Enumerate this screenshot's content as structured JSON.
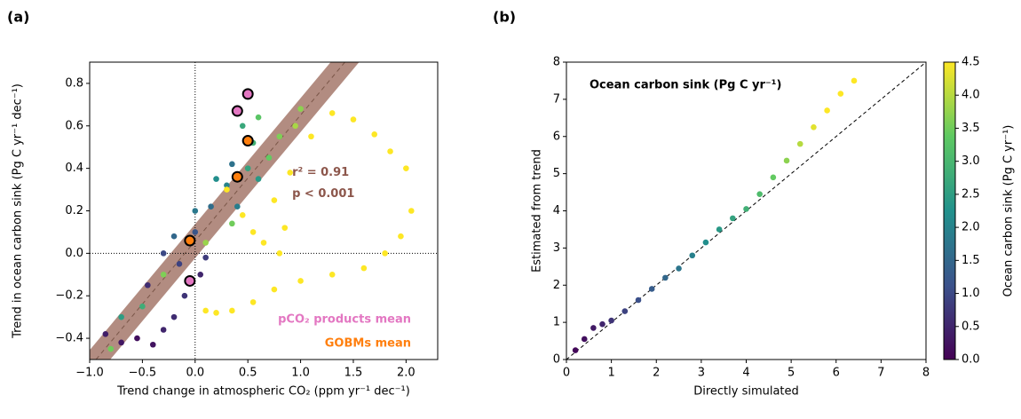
{
  "chart_data": [
    {
      "type": "scatter",
      "panel_label": "(a)",
      "xlabel": "Trend change in atmospheric CO₂ (ppm yr⁻¹ dec⁻¹)",
      "ylabel": "Trend in ocean carbon sink (Pg C yr⁻¹ dec⁻¹)",
      "xlim": [
        -1.0,
        2.3
      ],
      "ylim": [
        -0.5,
        0.9
      ],
      "xticks": [
        {
          "value": -1.0,
          "label": "−1.0"
        },
        {
          "value": -0.5,
          "label": "−0.5"
        },
        {
          "value": 0,
          "label": "0.0"
        },
        0.5,
        {
          "value": 1.0,
          "label": "1.0"
        },
        1.5,
        {
          "value": 2.0,
          "label": "2.0"
        }
      ],
      "yticks": [
        {
          "value": -0.4,
          "label": "−0.4"
        },
        {
          "value": -0.2,
          "label": "−0.2"
        },
        {
          "value": 0,
          "label": "0.0"
        },
        0.2,
        0.4,
        0.6,
        0.8
      ],
      "zero_lines": {
        "x": 0,
        "y": 0
      },
      "fit_line": {
        "x": [
          -0.94,
          1.42
        ],
        "y": [
          -0.5,
          0.9
        ],
        "band": 0.08,
        "color": "#a5786b"
      },
      "annotations": [
        {
          "text": "r² = 0.91",
          "x": 0.92,
          "y": 0.38
        },
        {
          "text": "p < 0.001",
          "x": 0.92,
          "y": 0.28
        }
      ],
      "x": [
        -0.85,
        -0.7,
        -0.55,
        -0.4,
        -0.3,
        -0.2,
        -0.1,
        0.05,
        0.1,
        -0.15,
        -0.3,
        0.0,
        -0.45,
        -0.2,
        0.0,
        0.15,
        0.3,
        0.35,
        0.2,
        0.4,
        -0.7,
        -0.5,
        0.5,
        0.55,
        0.6,
        0.45,
        -0.8,
        -0.3,
        0.1,
        0.7,
        0.8,
        0.95,
        1.0,
        0.6,
        0.35,
        0.3,
        0.45,
        0.55,
        0.65,
        0.8,
        0.85,
        0.75,
        0.9,
        1.1,
        1.3,
        1.5,
        1.7,
        1.85,
        2.0,
        2.05,
        1.95,
        1.8,
        1.6,
        1.3,
        1.0,
        0.75,
        0.55,
        0.35,
        0.2,
        0.1
      ],
      "y": [
        -0.38,
        -0.42,
        -0.4,
        -0.43,
        -0.36,
        -0.3,
        -0.2,
        -0.1,
        -0.02,
        -0.05,
        0.0,
        0.1,
        -0.15,
        0.08,
        0.2,
        0.22,
        0.32,
        0.42,
        0.35,
        0.22,
        -0.3,
        -0.25,
        0.4,
        0.52,
        0.35,
        0.6,
        -0.45,
        -0.1,
        0.05,
        0.45,
        0.55,
        0.6,
        0.68,
        0.64,
        0.14,
        0.3,
        0.18,
        0.1,
        0.05,
        0.0,
        0.12,
        0.25,
        0.38,
        0.55,
        0.66,
        0.63,
        0.56,
        0.48,
        0.4,
        0.2,
        0.08,
        0.0,
        -0.07,
        -0.1,
        -0.13,
        -0.17,
        -0.23,
        -0.27,
        -0.28,
        -0.27
      ],
      "c": [
        0.4,
        0.3,
        0.2,
        0.25,
        0.5,
        0.6,
        0.7,
        0.5,
        0.8,
        0.9,
        1.0,
        1.2,
        0.6,
        1.5,
        1.8,
        1.6,
        2.0,
        1.7,
        2.2,
        1.9,
        2.5,
        2.8,
        2.6,
        2.9,
        2.4,
        2.7,
        3.5,
        3.6,
        3.8,
        3.4,
        3.6,
        3.9,
        3.7,
        3.3,
        3.5,
        4.5,
        4.5,
        4.5,
        4.5,
        4.5,
        4.5,
        4.5,
        4.5,
        4.5,
        4.5,
        4.5,
        4.5,
        4.5,
        4.5,
        4.5,
        4.5,
        4.5,
        4.5,
        4.5,
        4.5,
        4.5,
        4.5,
        4.5,
        4.5,
        4.5
      ],
      "markers": [
        {
          "name": "pCO₂ products mean",
          "color": "#e377c2",
          "x": [
            -0.05,
            0.4,
            0.5
          ],
          "y": [
            -0.13,
            0.67,
            0.75
          ]
        },
        {
          "name": "GOBMs mean",
          "color": "#ff7f0e",
          "x": [
            -0.05,
            0.4,
            0.5
          ],
          "y": [
            0.06,
            0.36,
            0.53
          ]
        }
      ]
    },
    {
      "type": "scatter",
      "panel_label": "(b)",
      "title": "Ocean carbon sink (Pg C yr⁻¹)",
      "xlabel": "Directly simulated",
      "ylabel": "Estimated from trend",
      "xlim": [
        0,
        8
      ],
      "ylim": [
        0,
        8
      ],
      "xticks": [
        0,
        1,
        2,
        3,
        4,
        5,
        6,
        7,
        8
      ],
      "yticks": [
        0,
        1,
        2,
        3,
        4,
        5,
        6,
        7,
        8
      ],
      "x": [
        0.2,
        0.4,
        0.6,
        0.8,
        1.0,
        1.3,
        1.6,
        1.9,
        2.2,
        2.5,
        2.8,
        3.1,
        3.4,
        3.7,
        4.0,
        4.3,
        4.6,
        4.9,
        5.2,
        5.5,
        5.8,
        6.1,
        6.4
      ],
      "y": [
        0.25,
        0.55,
        0.85,
        0.95,
        1.05,
        1.3,
        1.6,
        1.9,
        2.2,
        2.45,
        2.8,
        3.15,
        3.5,
        3.8,
        4.05,
        4.45,
        4.9,
        5.35,
        5.8,
        6.25,
        6.7,
        7.15,
        7.5
      ],
      "c": [
        0.1,
        0.2,
        0.35,
        0.5,
        0.7,
        0.9,
        1.1,
        1.3,
        1.5,
        1.75,
        1.95,
        2.2,
        2.4,
        2.6,
        2.85,
        3.1,
        3.4,
        3.7,
        4.0,
        4.3,
        4.5,
        4.5,
        4.5
      ],
      "clabel": "Ocean carbon sink (Pg C yr⁻¹)",
      "clim": [
        0,
        4.5
      ],
      "cticks": [
        {
          "value": 0,
          "label": "0.0"
        },
        0.5,
        {
          "value": 1.0,
          "label": "1.0"
        },
        1.5,
        {
          "value": 2.0,
          "label": "2.0"
        },
        2.5,
        {
          "value": 3.0,
          "label": "3.0"
        },
        3.5,
        {
          "value": 4.0,
          "label": "4.0"
        },
        4.5
      ],
      "colormap": [
        "#440154",
        "#3b528b",
        "#21918c",
        "#5ec962",
        "#fde725"
      ]
    }
  ]
}
